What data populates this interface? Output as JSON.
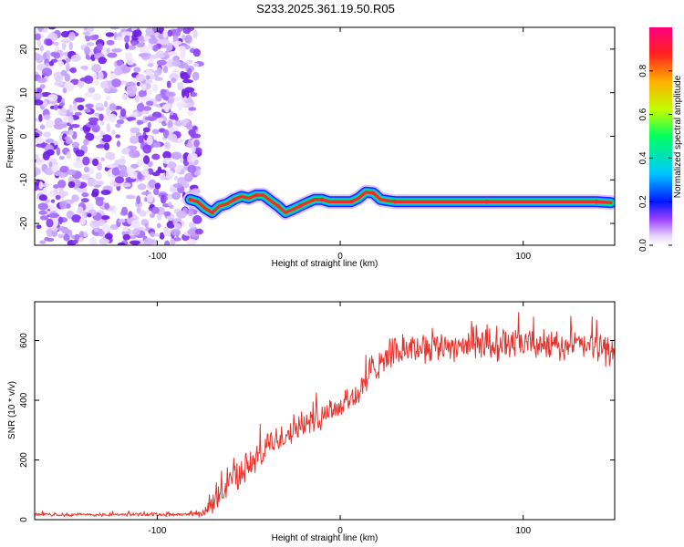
{
  "title": "S233.2025.361.19.50.R05",
  "colors": {
    "signal_line": "#e8312b",
    "scatter_purple": "#7a2cf0",
    "frame": "#000000"
  },
  "chart_data": [
    {
      "type": "heatmap",
      "xlabel": "Height of straight line (km)",
      "ylabel": "Frequency (Hz)",
      "xlim": [
        -167,
        150
      ],
      "ylim": [
        -25,
        25
      ],
      "xticks": [
        -100,
        0,
        100
      ],
      "yticks": [
        20,
        10,
        0,
        -10,
        -20
      ],
      "noise_region_x": [
        -167,
        -81
      ],
      "tone_track": [
        {
          "x": -82,
          "y": -14.5
        },
        {
          "x": -78,
          "y": -15
        },
        {
          "x": -74,
          "y": -16.5
        },
        {
          "x": -70,
          "y": -17.5
        },
        {
          "x": -66,
          "y": -16
        },
        {
          "x": -62,
          "y": -15.5
        },
        {
          "x": -58,
          "y": -14.5
        },
        {
          "x": -54,
          "y": -13.8
        },
        {
          "x": -50,
          "y": -14.2
        },
        {
          "x": -46,
          "y": -13.5
        },
        {
          "x": -42,
          "y": -13.5
        },
        {
          "x": -38,
          "y": -14.8
        },
        {
          "x": -34,
          "y": -16
        },
        {
          "x": -30,
          "y": -17.5
        },
        {
          "x": -26,
          "y": -16.8
        },
        {
          "x": -22,
          "y": -16
        },
        {
          "x": -18,
          "y": -15.2
        },
        {
          "x": -14,
          "y": -14.5
        },
        {
          "x": -10,
          "y": -14.5
        },
        {
          "x": -6,
          "y": -15
        },
        {
          "x": 0,
          "y": -15
        },
        {
          "x": 6,
          "y": -15
        },
        {
          "x": 10,
          "y": -14.2
        },
        {
          "x": 14,
          "y": -12.8
        },
        {
          "x": 18,
          "y": -13
        },
        {
          "x": 22,
          "y": -14.5
        },
        {
          "x": 26,
          "y": -14.8
        },
        {
          "x": 30,
          "y": -15
        },
        {
          "x": 40,
          "y": -15
        },
        {
          "x": 60,
          "y": -15
        },
        {
          "x": 80,
          "y": -15
        },
        {
          "x": 100,
          "y": -15
        },
        {
          "x": 120,
          "y": -15
        },
        {
          "x": 140,
          "y": -15
        },
        {
          "x": 148,
          "y": -15.2
        }
      ],
      "colorbar": {
        "label": "Normalized spectral amplitude",
        "range": [
          0,
          1
        ],
        "ticks": [
          "0.0",
          "0.2",
          "0.4",
          "0.6",
          "0.8"
        ]
      }
    },
    {
      "type": "line",
      "xlabel": "Height of straight line (km)",
      "ylabel": "SNR (10 * v/v)",
      "xlim": [
        -167,
        150
      ],
      "ylim": [
        0,
        730
      ],
      "xticks": [
        -100,
        0,
        100
      ],
      "yticks": [
        0,
        200,
        400,
        600
      ],
      "series": [
        {
          "name": "SNR",
          "x": [
            -167,
            -150,
            -130,
            -110,
            -90,
            -80,
            -74,
            -70,
            -65,
            -60,
            -55,
            -50,
            -45,
            -40,
            -35,
            -30,
            -25,
            -20,
            -15,
            -10,
            -5,
            0,
            5,
            10,
            15,
            20,
            25,
            30,
            35,
            40,
            50,
            60,
            70,
            80,
            90,
            100,
            110,
            120,
            130,
            140,
            150
          ],
          "values": [
            18,
            17,
            16,
            18,
            17,
            17,
            20,
            50,
            90,
            130,
            160,
            180,
            210,
            240,
            265,
            285,
            305,
            320,
            340,
            355,
            370,
            380,
            400,
            420,
            470,
            520,
            545,
            560,
            570,
            575,
            580,
            585,
            585,
            580,
            585,
            590,
            585,
            580,
            585,
            580,
            560
          ],
          "noise_amplitude": [
            7,
            7,
            7,
            7,
            7,
            8,
            15,
            40,
            55,
            60,
            60,
            60,
            60,
            60,
            60,
            60,
            60,
            60,
            60,
            60,
            60,
            60,
            60,
            60,
            60,
            60,
            60,
            60,
            60,
            60,
            60,
            60,
            60,
            60,
            60,
            60,
            60,
            60,
            60,
            60,
            60
          ]
        }
      ]
    }
  ]
}
